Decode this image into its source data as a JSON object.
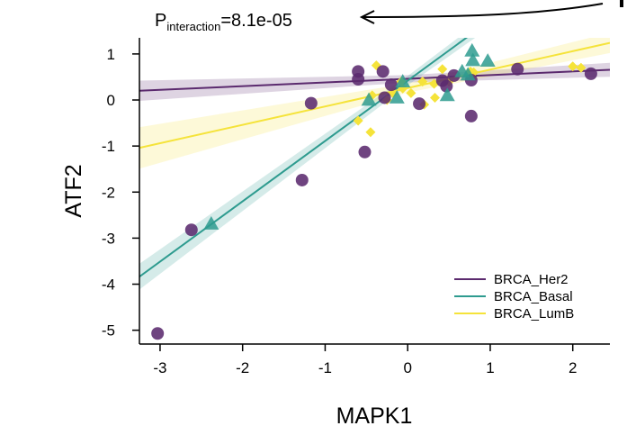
{
  "chart_data": {
    "type": "scatter",
    "xlabel": "MAPK1",
    "ylabel": "ATF2",
    "xlim": [
      -3.25,
      2.45
    ],
    "ylim": [
      -5.3,
      1.35
    ],
    "x_ticks": [
      -3,
      -2,
      -1,
      0,
      1,
      2
    ],
    "y_ticks": [
      1,
      0,
      -1,
      -2,
      -3,
      -4,
      -5
    ],
    "annotation": {
      "prefix": "P",
      "subscript": "interaction",
      "value_text": "=8.1e-05"
    },
    "legend_position": "bottom-right",
    "series": [
      {
        "name": "BRCA_Her2",
        "color": "#5b2a6e",
        "marker": "circle",
        "fit": {
          "intercept": 0.46,
          "slope": 0.08
        },
        "band_halfwidth": [
          0.22,
          0.08,
          0.15
        ],
        "points": [
          [
            -3.03,
            -5.07
          ],
          [
            -2.62,
            -2.82
          ],
          [
            -1.28,
            -1.74
          ],
          [
            -1.17,
            -0.07
          ],
          [
            -0.6,
            0.62
          ],
          [
            -0.6,
            0.45
          ],
          [
            -0.52,
            -1.13
          ],
          [
            -0.3,
            0.62
          ],
          [
            -0.28,
            0.05
          ],
          [
            -0.2,
            0.33
          ],
          [
            0.14,
            -0.08
          ],
          [
            0.42,
            0.42
          ],
          [
            0.47,
            0.3
          ],
          [
            0.56,
            0.53
          ],
          [
            0.77,
            0.43
          ],
          [
            0.77,
            -0.35
          ],
          [
            1.33,
            0.67
          ],
          [
            2.22,
            0.57
          ]
        ]
      },
      {
        "name": "BRCA_Basal",
        "color": "#2e9b8f",
        "marker": "triangle",
        "fit": {
          "intercept": 0.42,
          "slope": 1.31
        },
        "band_halfwidth": [
          0.28,
          0.1,
          0.22
        ],
        "points": [
          [
            -2.38,
            -2.69
          ],
          [
            -0.47,
            0.0
          ],
          [
            -0.06,
            0.4
          ],
          [
            -0.13,
            0.05
          ],
          [
            0.48,
            0.1
          ],
          [
            0.66,
            0.62
          ],
          [
            0.73,
            0.55
          ],
          [
            0.78,
            1.07
          ],
          [
            0.79,
            0.86
          ],
          [
            0.97,
            0.85
          ]
        ]
      },
      {
        "name": "BRCA_LumB",
        "color": "#f5e33a",
        "marker": "diamond",
        "fit": {
          "intercept": 0.26,
          "slope": 0.4
        },
        "band_halfwidth": [
          0.45,
          0.1,
          0.22
        ],
        "points": [
          [
            -0.6,
            -0.45
          ],
          [
            -0.45,
            -0.7
          ],
          [
            -0.43,
            0.1
          ],
          [
            -0.38,
            0.75
          ],
          [
            -0.25,
            0.0
          ],
          [
            -0.18,
            0.15
          ],
          [
            -0.08,
            0.4
          ],
          [
            -0.06,
            0.25
          ],
          [
            0.04,
            0.15
          ],
          [
            0.18,
            0.4
          ],
          [
            0.2,
            -0.1
          ],
          [
            0.32,
            0.35
          ],
          [
            0.33,
            0.05
          ],
          [
            0.42,
            0.67
          ],
          [
            0.5,
            0.4
          ],
          [
            0.76,
            0.62
          ],
          [
            0.8,
            0.6
          ],
          [
            2.0,
            0.73
          ],
          [
            2.1,
            0.7
          ]
        ]
      }
    ]
  }
}
